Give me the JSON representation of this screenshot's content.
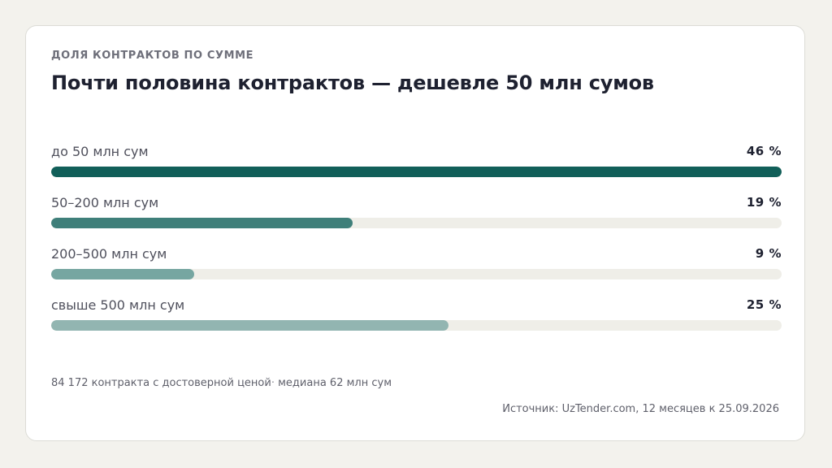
{
  "header": {
    "eyebrow": "ДОЛЯ КОНТРАКТОВ ПО СУММЕ",
    "title": "Почти половина контрактов — дешевле 50 млн сумов"
  },
  "chart_data": {
    "type": "bar",
    "orientation": "horizontal",
    "title": "Почти половина контрактов — дешевле 50 млн сумов",
    "categories": [
      "до 50 млн сум",
      "50–200 млн сум",
      "200–500 млн сум",
      "свыше 500 млн сум"
    ],
    "values": [
      46,
      19,
      9,
      25
    ],
    "value_labels": [
      "46 %",
      "19 %",
      "9 %",
      "25 %"
    ],
    "unit": "%",
    "colors": [
      "#115f59",
      "#3f7f7a",
      "#76a6a1",
      "#92b5b1"
    ],
    "track_color": "#efeee8",
    "scale_max": 46
  },
  "footer": {
    "note_main": "84 172 контракта с достоверной ценой",
    "note_sep": "·",
    "note_tail": "медиана 62 млн сум",
    "source": "Источник: UzTender.com, 12 месяцев к 25.09.2026"
  }
}
